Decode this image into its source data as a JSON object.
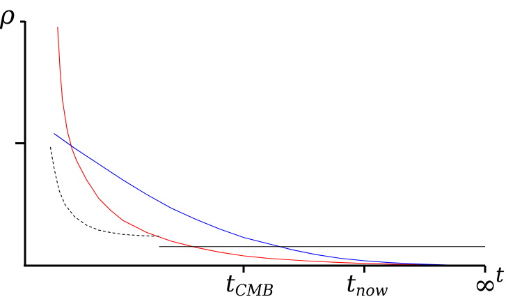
{
  "chart_data": {
    "type": "line",
    "xlabel": "t",
    "ylabel": "ρ",
    "x_ticks": [
      {
        "id": "cmb",
        "label": "t",
        "sub": "CMB",
        "t": 1.0
      },
      {
        "id": "now",
        "label": "t",
        "sub": "now",
        "t": 2.0
      },
      {
        "id": "inf",
        "label": "∞",
        "sub": "",
        "t": 3.0
      }
    ],
    "y_ticks": [
      {
        "id": "mid",
        "value": 1.0
      }
    ],
    "xlim": [
      -0.81,
      3.0
    ],
    "ylim": [
      0,
      2.0
    ],
    "grid": false,
    "legend": "none",
    "series": [
      {
        "id": "radiation",
        "color": "#ff0000",
        "dash": "solid",
        "points": [
          [
            -0.54,
            1.95
          ],
          [
            -0.52,
            1.6
          ],
          [
            -0.5,
            1.35
          ],
          [
            -0.46,
            1.1
          ],
          [
            -0.42,
            0.95
          ],
          [
            -0.38,
            0.85
          ],
          [
            -0.3,
            0.7
          ],
          [
            -0.2,
            0.55
          ],
          [
            -0.1,
            0.45
          ],
          [
            0.0,
            0.37
          ],
          [
            0.2,
            0.27
          ],
          [
            0.4,
            0.2
          ],
          [
            0.6,
            0.15
          ],
          [
            0.8,
            0.11
          ],
          [
            1.0,
            0.08
          ],
          [
            1.2,
            0.06
          ],
          [
            1.5,
            0.04
          ],
          [
            1.8,
            0.025
          ],
          [
            2.0,
            0.018
          ],
          [
            2.3,
            0.01
          ],
          [
            2.6,
            0.005
          ],
          [
            3.0,
            0.0
          ]
        ]
      },
      {
        "id": "matter",
        "color": "#0000ff",
        "dash": "solid",
        "points": [
          [
            -0.57,
            1.08
          ],
          [
            -0.4,
            0.96
          ],
          [
            -0.2,
            0.83
          ],
          [
            0.0,
            0.7
          ],
          [
            0.2,
            0.58
          ],
          [
            0.4,
            0.47
          ],
          [
            0.6,
            0.38
          ],
          [
            0.8,
            0.3
          ],
          [
            1.0,
            0.23
          ],
          [
            1.2,
            0.18
          ],
          [
            1.4,
            0.13
          ],
          [
            1.6,
            0.09
          ],
          [
            1.8,
            0.06
          ],
          [
            2.0,
            0.04
          ],
          [
            2.2,
            0.025
          ],
          [
            2.4,
            0.015
          ],
          [
            2.6,
            0.008
          ],
          [
            2.8,
            0.003
          ],
          [
            3.0,
            0.0
          ]
        ]
      },
      {
        "id": "dark-energy-dashed",
        "color": "#000000",
        "dash": "dashed",
        "points": [
          [
            -0.6,
            0.97
          ],
          [
            -0.57,
            0.8
          ],
          [
            -0.53,
            0.62
          ],
          [
            -0.48,
            0.5
          ],
          [
            -0.4,
            0.4
          ],
          [
            -0.3,
            0.33
          ],
          [
            -0.2,
            0.29
          ],
          [
            -0.1,
            0.27
          ],
          [
            0.0,
            0.255
          ],
          [
            0.15,
            0.245
          ],
          [
            0.3,
            0.24
          ]
        ]
      },
      {
        "id": "dark-energy",
        "color": "#000000",
        "dash": "solid",
        "points": [
          [
            0.3,
            0.155
          ],
          [
            3.0,
            0.155
          ]
        ]
      }
    ]
  }
}
